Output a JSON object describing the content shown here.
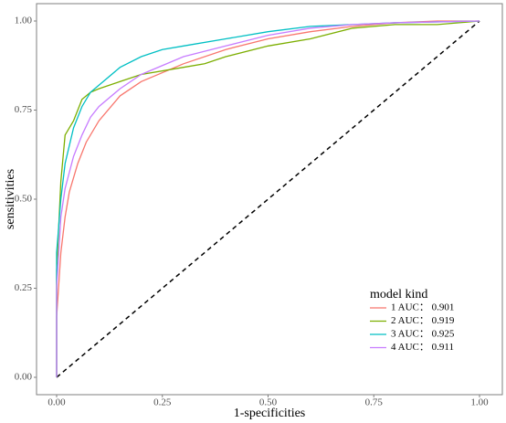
{
  "chart_data": {
    "type": "line",
    "x_label": "1-specificities",
    "y_label": "sensitivities",
    "legend_title": "model kind",
    "legend_position": "bottom-right",
    "xlim": [
      0,
      1
    ],
    "ylim": [
      0,
      1
    ],
    "xticks": [
      {
        "value": 0,
        "label": "0.00"
      },
      {
        "value": 0.25,
        "label": "0.25"
      },
      {
        "value": 0.5,
        "label": "0.50"
      },
      {
        "value": 0.75,
        "label": "0.75"
      },
      {
        "value": 1,
        "label": "1.00"
      }
    ],
    "yticks": [
      {
        "value": 0,
        "label": "0.00"
      },
      {
        "value": 0.25,
        "label": "0.25"
      },
      {
        "value": 0.5,
        "label": "0.50"
      },
      {
        "value": 0.75,
        "label": "0.75"
      },
      {
        "value": 1,
        "label": "1.00"
      }
    ],
    "series": [
      {
        "name": "1 AUC： 0.901",
        "color": "#F8766D",
        "x": [
          0,
          0,
          0.01,
          0.02,
          0.03,
          0.05,
          0.07,
          0.1,
          0.15,
          0.2,
          0.3,
          0.4,
          0.5,
          0.6,
          0.7,
          0.8,
          0.9,
          1
        ],
        "values": [
          0,
          0.17,
          0.35,
          0.45,
          0.52,
          0.6,
          0.66,
          0.72,
          0.79,
          0.83,
          0.88,
          0.92,
          0.95,
          0.97,
          0.985,
          0.995,
          1,
          1
        ]
      },
      {
        "name": "2 AUC： 0.919",
        "color": "#7CAE00",
        "x": [
          0,
          0,
          0.01,
          0.02,
          0.04,
          0.06,
          0.08,
          0.1,
          0.15,
          0.2,
          0.3,
          0.35,
          0.4,
          0.5,
          0.6,
          0.7,
          0.8,
          0.9,
          1
        ],
        "values": [
          0,
          0.3,
          0.55,
          0.68,
          0.72,
          0.78,
          0.8,
          0.81,
          0.83,
          0.85,
          0.87,
          0.88,
          0.9,
          0.93,
          0.95,
          0.98,
          0.99,
          0.99,
          1
        ]
      },
      {
        "name": "3 AUC： 0.925",
        "color": "#00BFC4",
        "x": [
          0,
          0,
          0.01,
          0.02,
          0.04,
          0.06,
          0.08,
          0.1,
          0.15,
          0.2,
          0.25,
          0.3,
          0.4,
          0.5,
          0.6,
          0.7,
          0.8,
          1
        ],
        "values": [
          0,
          0.35,
          0.5,
          0.6,
          0.7,
          0.76,
          0.8,
          0.82,
          0.87,
          0.9,
          0.92,
          0.93,
          0.95,
          0.97,
          0.985,
          0.99,
          0.995,
          1
        ]
      },
      {
        "name": "4 AUC： 0.911",
        "color": "#C77CFF",
        "x": [
          0,
          0,
          0.01,
          0.02,
          0.04,
          0.06,
          0.08,
          0.1,
          0.15,
          0.2,
          0.3,
          0.4,
          0.5,
          0.6,
          0.7,
          0.8,
          1
        ],
        "values": [
          0,
          0.25,
          0.45,
          0.53,
          0.62,
          0.68,
          0.73,
          0.76,
          0.81,
          0.85,
          0.9,
          0.93,
          0.96,
          0.98,
          0.99,
          0.995,
          1
        ]
      }
    ]
  }
}
